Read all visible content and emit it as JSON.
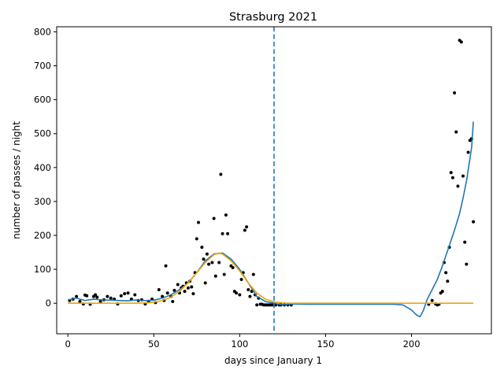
{
  "chart_data": {
    "type": "scatter",
    "title": "Strasburg 2021",
    "xlabel": "days since January 1",
    "ylabel": "number of passes / night",
    "xlim": [
      -6.5,
      246.5
    ],
    "ylim": [
      -90,
      815
    ],
    "xticks": [
      0,
      50,
      100,
      150,
      200
    ],
    "yticks": [
      0,
      100,
      200,
      300,
      400,
      500,
      600,
      700,
      800
    ],
    "grid": false,
    "vline": {
      "x": 120,
      "color": "#1f77b4",
      "style": "dashed"
    },
    "series": [
      {
        "kind": "points",
        "color": "#000000",
        "x": [
          1,
          3,
          5,
          7,
          9,
          10,
          11,
          13,
          15,
          16,
          17,
          19,
          21,
          23,
          25,
          27,
          29,
          31,
          33,
          35,
          37,
          39,
          41,
          43,
          45,
          47,
          49,
          51,
          53,
          55,
          56,
          57,
          58,
          60,
          61,
          62,
          64,
          65,
          66,
          67,
          68,
          69,
          70,
          71,
          72,
          73,
          74,
          75,
          76,
          78,
          79,
          80,
          81,
          82,
          84,
          85,
          86,
          88,
          89,
          90,
          91,
          92,
          93,
          95,
          96,
          97,
          98,
          100,
          101,
          102,
          103,
          104,
          105,
          106,
          107,
          108,
          109,
          110,
          111,
          112,
          113,
          114,
          115,
          116,
          117,
          118,
          119,
          120,
          121,
          123,
          124,
          126,
          128,
          130,
          210,
          212,
          214,
          215,
          216,
          217,
          218,
          219,
          220,
          221,
          222,
          223,
          224,
          225,
          226,
          227,
          228,
          229,
          230,
          231,
          232,
          233,
          234,
          235,
          236
        ],
        "y": [
          8,
          12,
          20,
          5,
          -2,
          24,
          22,
          -3,
          20,
          25,
          18,
          5,
          10,
          20,
          15,
          12,
          -2,
          22,
          28,
          30,
          12,
          25,
          8,
          10,
          -2,
          5,
          12,
          2,
          40,
          20,
          8,
          110,
          30,
          20,
          5,
          38,
          55,
          30,
          45,
          50,
          35,
          60,
          45,
          65,
          48,
          28,
          90,
          190,
          238,
          165,
          130,
          60,
          145,
          115,
          120,
          250,
          80,
          120,
          380,
          205,
          85,
          260,
          205,
          110,
          105,
          35,
          30,
          25,
          70,
          90,
          215,
          225,
          40,
          20,
          35,
          85,
          25,
          -5,
          15,
          -3,
          -3,
          -5,
          -5,
          -5,
          -5,
          -5,
          -5,
          -5,
          -5,
          -5,
          -5,
          -5,
          -5,
          -5,
          -3,
          8,
          -2,
          -5,
          -3,
          30,
          35,
          120,
          90,
          65,
          165,
          385,
          370,
          620,
          505,
          345,
          775,
          770,
          375,
          180,
          115,
          445,
          480,
          485,
          240
        ]
      },
      {
        "kind": "line",
        "color": "#1f77b4",
        "x": [
          0,
          5,
          10,
          15,
          20,
          25,
          30,
          35,
          40,
          45,
          50,
          55,
          60,
          65,
          70,
          75,
          80,
          85,
          90,
          95,
          100,
          105,
          110,
          115,
          120,
          125,
          130,
          140,
          150,
          160,
          170,
          180,
          190,
          195,
          200,
          203,
          205,
          207,
          209,
          212,
          215,
          218,
          220,
          222,
          225,
          228,
          230,
          232,
          235,
          236
        ],
        "y": [
          10,
          15,
          8,
          12,
          10,
          9,
          8,
          7,
          10,
          8,
          9,
          15,
          25,
          40,
          60,
          90,
          125,
          145,
          148,
          130,
          100,
          60,
          20,
          5,
          0,
          -5,
          -2,
          -3,
          -3,
          -3,
          -3,
          -3,
          -3,
          -5,
          -20,
          -35,
          -40,
          -20,
          10,
          40,
          70,
          110,
          140,
          170,
          215,
          265,
          310,
          360,
          460,
          535
        ]
      },
      {
        "kind": "line",
        "color": "#f0a30a",
        "x": [
          0,
          10,
          20,
          30,
          40,
          45,
          50,
          55,
          60,
          65,
          70,
          75,
          80,
          85,
          88,
          90,
          95,
          100,
          105,
          110,
          115,
          120,
          125,
          130,
          140,
          160,
          180,
          200,
          220,
          236
        ],
        "y": [
          0,
          0,
          0,
          0,
          0,
          1,
          3,
          8,
          18,
          35,
          60,
          90,
          120,
          143,
          148,
          145,
          125,
          95,
          60,
          30,
          12,
          4,
          1,
          0,
          0,
          0,
          0,
          0,
          0,
          0
        ]
      }
    ]
  }
}
